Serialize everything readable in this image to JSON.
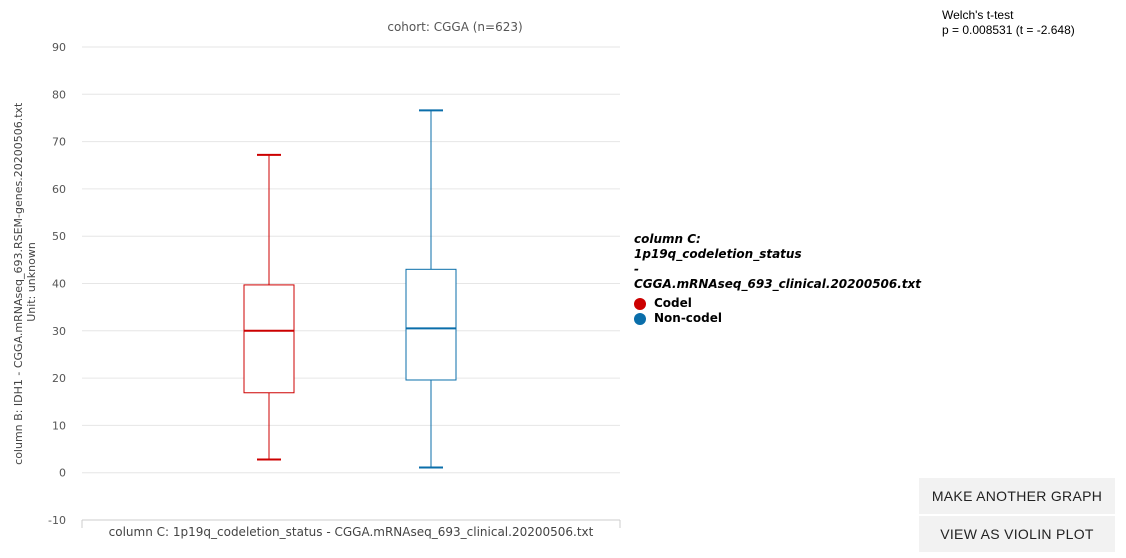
{
  "chart_data": {
    "type": "box",
    "title": "cohort: CGGA (n=623)",
    "xlabel": "column C: 1p19q_codeletion_status - CGGA.mRNAseq_693_clinical.20200506.txt",
    "ylabel_lines": [
      "column B: IDH1 - CGGA.mRNAseq_693.RSEM-genes.20200506.txt",
      "Unit: unknown"
    ],
    "ylim": [
      -10,
      90
    ],
    "yticks": [
      -10,
      0,
      10,
      20,
      30,
      40,
      50,
      60,
      70,
      80,
      90
    ],
    "grid": true,
    "legend_position": "right",
    "series": [
      {
        "name": "Codel",
        "color": "#cc0000",
        "min": 2.8,
        "q1": 16.9,
        "median": 30.0,
        "q3": 39.7,
        "max": 67.2
      },
      {
        "name": "Non-codel",
        "color": "#0a6eaa",
        "min": 1.1,
        "q1": 19.6,
        "median": 30.5,
        "q3": 43.0,
        "max": 76.6
      }
    ]
  },
  "stats": {
    "test_name": "Welch's t-test",
    "result": "p = 0.008531 (t = -2.648)"
  },
  "legend": {
    "title_lines": [
      "column C:",
      "1p19q_codeletion_status",
      "-",
      "CGGA.mRNAseq_693_clinical.20200506.txt"
    ],
    "items": [
      {
        "label": "Codel",
        "color": "#cc0000"
      },
      {
        "label": "Non-codel",
        "color": "#0a6eaa"
      }
    ]
  },
  "buttons": {
    "make_another": "MAKE ANOTHER GRAPH",
    "violin": "VIEW AS VIOLIN PLOT"
  }
}
